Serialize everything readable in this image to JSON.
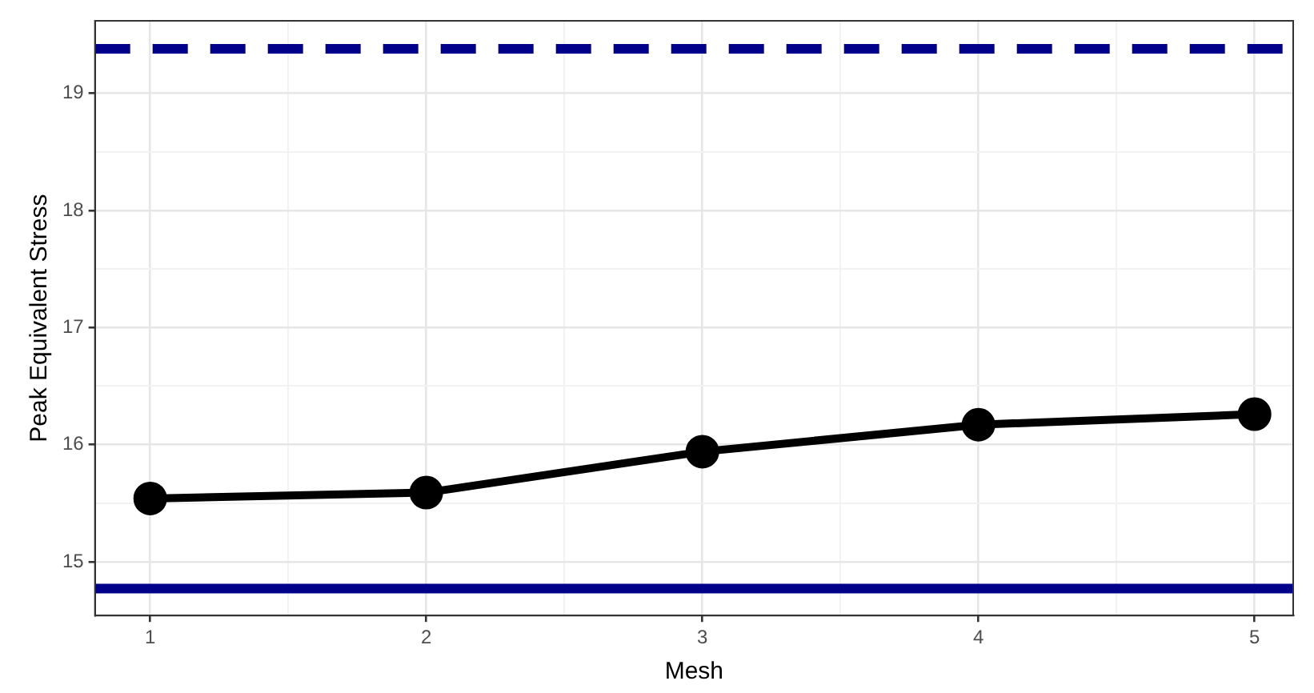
{
  "chart_data": {
    "type": "line",
    "xlabel": "Mesh",
    "ylabel": "Peak Equivalent Stress",
    "x": [
      1,
      2,
      3,
      4,
      5
    ],
    "series": [
      {
        "color": "#000000",
        "values": [
          15.54,
          15.59,
          15.94,
          16.17,
          16.26
        ]
      }
    ],
    "xlim": [
      0.8,
      5.14
    ],
    "xticks": [
      1,
      {
        "value": 1.5,
        "label": null
      },
      2,
      {
        "value": 2.5,
        "label": null
      },
      3,
      {
        "value": 3.5,
        "label": null
      },
      4,
      {
        "value": 4.5,
        "label": null
      },
      5
    ],
    "ylim": [
      14.54,
      19.62
    ],
    "yticks": [
      15,
      {
        "value": 15.5,
        "label": null
      },
      16,
      {
        "value": 16.5,
        "label": null
      },
      17,
      {
        "value": 17.5,
        "label": null
      },
      18,
      {
        "value": 18.5,
        "label": null
      },
      19
    ],
    "ref_lines": [
      {
        "axis": "y",
        "value": 19.38,
        "color": "#00008b",
        "line_style": "dashed"
      },
      {
        "axis": "y",
        "value": 14.77,
        "color": "#00008b",
        "line_style": "solid"
      }
    ],
    "grid": true,
    "marker": "circle",
    "line_style": "solid",
    "legend": false
  }
}
